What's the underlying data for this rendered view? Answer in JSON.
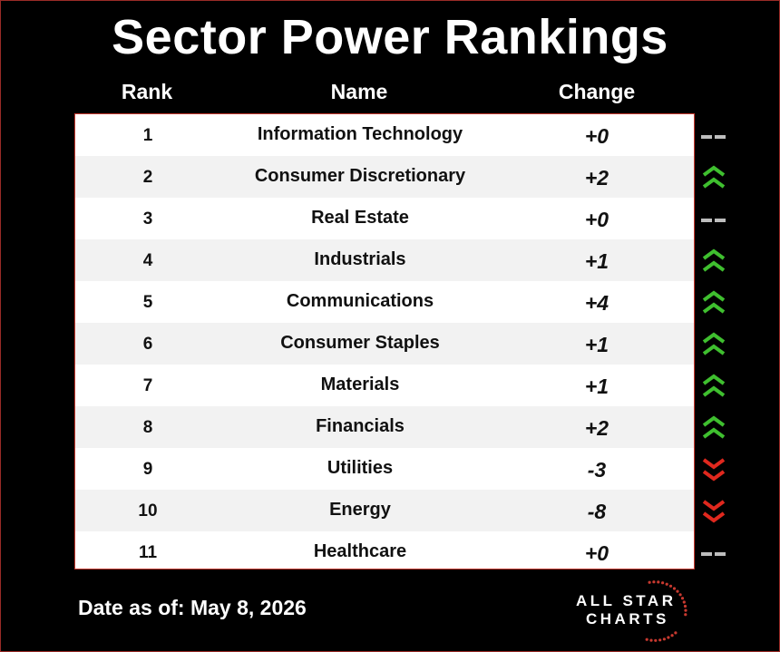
{
  "title": "Sector Power Rankings",
  "headers": {
    "rank": "Rank",
    "name": "Name",
    "change": "Change"
  },
  "rows": [
    {
      "rank": "1",
      "name": "Information Technology",
      "change": "+0",
      "trend": "flat"
    },
    {
      "rank": "2",
      "name": "Consumer Discretionary",
      "change": "+2",
      "trend": "up"
    },
    {
      "rank": "3",
      "name": "Real Estate",
      "change": "+0",
      "trend": "flat"
    },
    {
      "rank": "4",
      "name": "Industrials",
      "change": "+1",
      "trend": "up"
    },
    {
      "rank": "5",
      "name": "Communications",
      "change": "+4",
      "trend": "up"
    },
    {
      "rank": "6",
      "name": "Consumer Staples",
      "change": "+1",
      "trend": "up"
    },
    {
      "rank": "7",
      "name": "Materials",
      "change": "+1",
      "trend": "up"
    },
    {
      "rank": "8",
      "name": "Financials",
      "change": "+2",
      "trend": "up"
    },
    {
      "rank": "9",
      "name": "Utilities",
      "change": "-3",
      "trend": "down"
    },
    {
      "rank": "10",
      "name": "Energy",
      "change": "-8",
      "trend": "down"
    },
    {
      "rank": "11",
      "name": "Healthcare",
      "change": "+0",
      "trend": "flat"
    }
  ],
  "footer": {
    "date": "Date as of: May 8, 2026"
  },
  "logo": {
    "line1": "ALL STAR",
    "line2": "CHARTS"
  },
  "colors": {
    "up": "#3fbf2f",
    "down": "#e0281e",
    "flat": "#bdbdbd",
    "frame": "#c7392f"
  }
}
